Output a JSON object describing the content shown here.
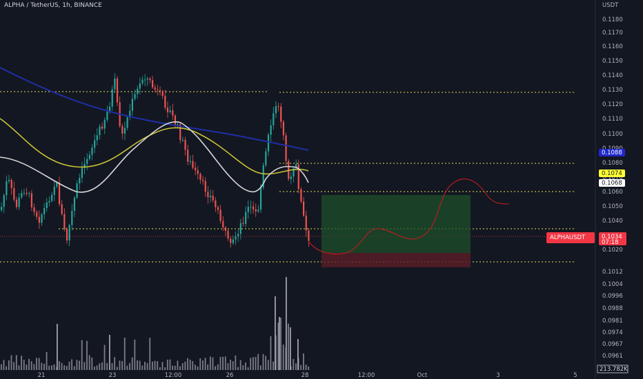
{
  "header": {
    "title": "ALPHA / TetherUS, 1h, BINANCE"
  },
  "currency": "USDT",
  "colors": {
    "background": "#131722",
    "up": "#26a69a",
    "down": "#ef5350",
    "ma_long": "#1e2fa8",
    "ma_mid": "#c9c334",
    "ma_short": "#d8d8d8",
    "level_line": "#e6e64c",
    "current_price": "#f23645",
    "projection": "#c61b1b",
    "profit_zone": "#1f4f2b",
    "loss_zone": "#5a1e27"
  },
  "price_axis": {
    "labels": [
      "0.1180",
      "0.1170",
      "0.1160",
      "0.1150",
      "0.1140",
      "0.1130",
      "0.1120",
      "0.1110",
      "0.1100",
      "0.1090",
      "0.1080",
      "0.1070",
      "0.1060",
      "0.1050",
      "0.1040",
      "0.1030",
      "0.1020",
      "0.1012",
      "0.1004",
      "0.0996",
      "0.0988",
      "0.0981",
      "0.0974",
      "0.0967",
      "0.0961",
      "0.0955"
    ]
  },
  "price_tags": [
    {
      "label": "0.1088",
      "bg": "#2128c8",
      "fg": "#ffffff"
    },
    {
      "label": "0.1074",
      "bg": "#ffff33",
      "fg": "#131722"
    },
    {
      "label": "0.1068",
      "bg": "#ffffff",
      "fg": "#131722"
    }
  ],
  "current": {
    "symbol": "ALPHAUSDT",
    "price": "0.1034",
    "countdown": "07:18"
  },
  "volume_label": "213.782K",
  "time_axis": [
    "21",
    "23",
    "12:00",
    "26",
    "28",
    "12:00",
    "Oct",
    "3",
    "5"
  ],
  "chart_data": {
    "type": "candlestick",
    "symbol": "ALPHA / TetherUS",
    "interval": "1h",
    "exchange": "BINANCE",
    "y_range": [
      0.0955,
      0.1185
    ],
    "horizontal_levels": [
      0.1128,
      0.108,
      0.1062,
      0.1039,
      0.1018
    ],
    "position": {
      "entry": 0.1025,
      "target": 0.106,
      "stop": 0.1015
    },
    "moving_averages": [
      "long",
      "mid",
      "short"
    ]
  }
}
